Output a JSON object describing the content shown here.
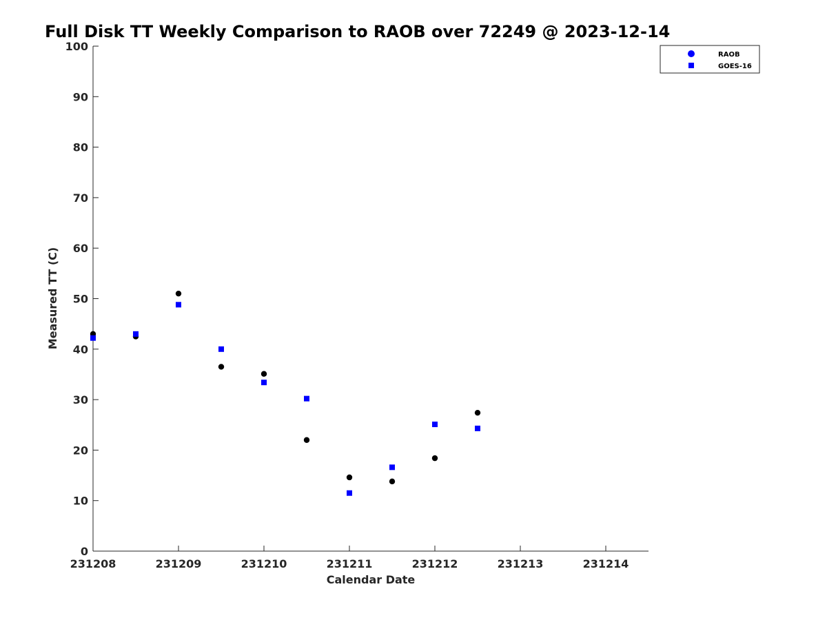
{
  "chart_data": {
    "type": "scatter",
    "title": "Full Disk TT Weekly Comparison to RAOB over 72249 @ 2023-12-14",
    "xlabel": "Calendar Date",
    "ylabel": "Measured TT (C)",
    "x_ticks": [
      "231208",
      "231209",
      "231210",
      "231211",
      "231212",
      "231213",
      "231214"
    ],
    "y_ticks": [
      "0",
      "10",
      "20",
      "30",
      "40",
      "50",
      "60",
      "70",
      "80",
      "90",
      "100"
    ],
    "xlim": [
      0,
      6.5
    ],
    "ylim": [
      0,
      100
    ],
    "grid": false,
    "legend_position": "top-right",
    "series": [
      {
        "name": "RAOB",
        "marker": "circle",
        "color": "#000000",
        "legend_color": "#0000ff",
        "x": [
          0,
          0.5,
          1,
          1.5,
          2,
          2.5,
          3,
          3.5,
          4,
          4.5
        ],
        "y": [
          43.0,
          42.5,
          51.0,
          36.5,
          35.1,
          22.0,
          14.6,
          13.8,
          18.4,
          27.4
        ]
      },
      {
        "name": "GOES-16",
        "marker": "square",
        "color": "#0000ff",
        "legend_color": "#0000ff",
        "x": [
          0,
          0.5,
          1,
          1.5,
          2,
          2.5,
          3,
          3.5,
          4,
          4.5
        ],
        "y": [
          42.2,
          43.0,
          48.8,
          40.0,
          33.4,
          30.2,
          11.5,
          16.6,
          25.1,
          24.3
        ]
      }
    ]
  }
}
